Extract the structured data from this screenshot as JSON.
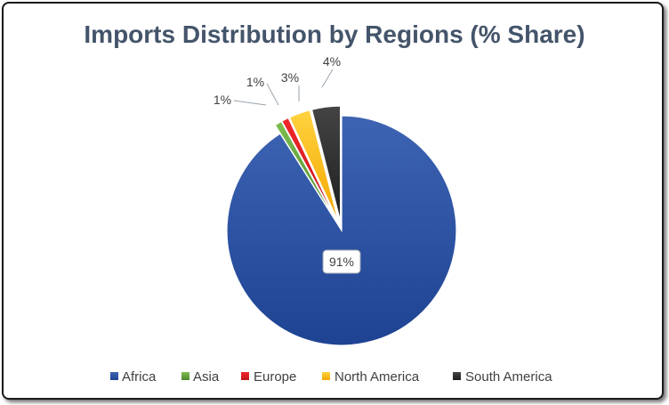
{
  "chart_data": {
    "type": "pie",
    "title": "Imports Distribution by Regions (% Share)",
    "categories": [
      "Africa",
      "Asia",
      "Europe",
      "North America",
      "South America"
    ],
    "values": [
      91,
      1,
      1,
      3,
      4
    ],
    "data_labels": [
      "91%",
      "1%",
      "1%",
      "3%",
      "4%"
    ],
    "colors": [
      "#2f55a4",
      "#70ad47",
      "#e31e24",
      "#ffc000",
      "#333333"
    ],
    "exploded": [
      false,
      true,
      true,
      true,
      true
    ],
    "legend_position": "bottom"
  }
}
